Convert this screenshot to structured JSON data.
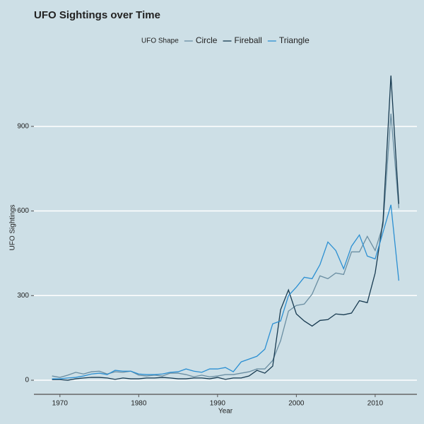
{
  "chart_data": {
    "type": "line",
    "title": "UFO Sightings over Time",
    "x_label": "Year",
    "y_label": "UFO Sightings",
    "legend_title": "UFO Shape",
    "x": [
      1969,
      1970,
      1971,
      1972,
      1973,
      1974,
      1975,
      1976,
      1977,
      1978,
      1979,
      1980,
      1981,
      1982,
      1983,
      1984,
      1985,
      1986,
      1987,
      1988,
      1989,
      1990,
      1991,
      1992,
      1993,
      1994,
      1995,
      1996,
      1997,
      1998,
      1999,
      2000,
      2001,
      2002,
      2003,
      2004,
      2005,
      2006,
      2007,
      2008,
      2009,
      2010,
      2011,
      2012,
      2013
    ],
    "series": [
      {
        "name": "Circle",
        "color": "#6a8ea2",
        "values": [
          15,
          10,
          18,
          28,
          22,
          30,
          32,
          22,
          30,
          28,
          32,
          18,
          15,
          18,
          15,
          25,
          25,
          20,
          12,
          18,
          12,
          15,
          20,
          20,
          25,
          30,
          40,
          40,
          70,
          140,
          245,
          265,
          270,
          305,
          370,
          360,
          380,
          375,
          455,
          455,
          510,
          460,
          550,
          945,
          610
        ]
      },
      {
        "name": "Fireball",
        "color": "#173a50",
        "values": [
          2,
          2,
          0,
          5,
          8,
          10,
          10,
          8,
          3,
          8,
          5,
          5,
          8,
          8,
          10,
          8,
          5,
          5,
          8,
          8,
          5,
          10,
          3,
          8,
          8,
          15,
          35,
          25,
          50,
          250,
          320,
          235,
          210,
          192,
          212,
          215,
          235,
          232,
          238,
          282,
          275,
          380,
          565,
          1080,
          625
        ]
      },
      {
        "name": "Triangle",
        "color": "#2b8fd2",
        "values": [
          5,
          5,
          8,
          10,
          15,
          22,
          25,
          20,
          35,
          32,
          32,
          22,
          20,
          20,
          22,
          28,
          30,
          40,
          32,
          28,
          40,
          40,
          45,
          30,
          65,
          75,
          85,
          110,
          200,
          210,
          300,
          330,
          365,
          360,
          410,
          490,
          460,
          395,
          475,
          515,
          440,
          430,
          525,
          622,
          353
        ]
      }
    ],
    "xlim": [
      1966.7,
      2015.3
    ],
    "ylim": [
      -50,
      1110
    ],
    "xticks": [
      1970,
      1980,
      1990,
      2000,
      2010
    ],
    "yticks": [
      0,
      300,
      600,
      900
    ],
    "grid": true
  }
}
